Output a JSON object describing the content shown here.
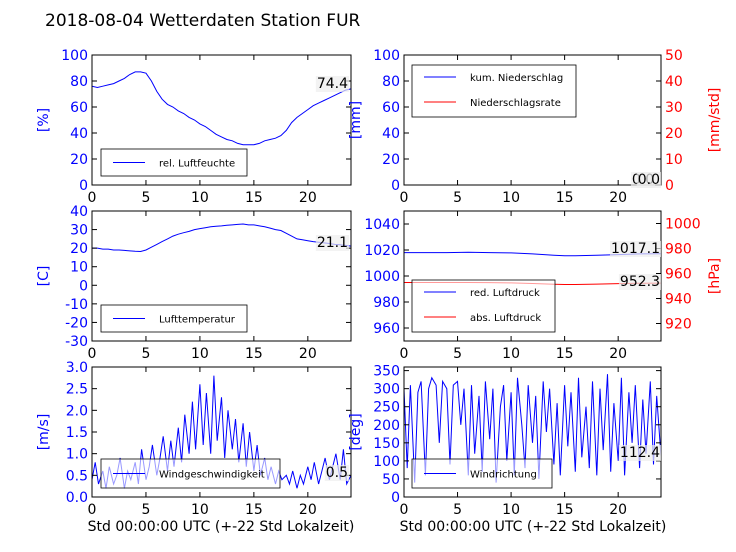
{
  "title": "2018-08-04 Wetterdaten Station FUR\u0001",
  "xlabel": "Std 00:00:00 UTC (+-22 Std Lokalzeit)",
  "colors": {
    "primary": "#0000ff",
    "secondary": "#ff0000",
    "legend_bg": "#ffffff"
  },
  "chart_data": [
    {
      "id": "humidity",
      "type": "line",
      "ylabel": "[%]",
      "ylim": [
        0,
        100
      ],
      "yticks": [
        0,
        20,
        40,
        60,
        80,
        100
      ],
      "xlim": [
        0,
        24
      ],
      "xticks": [
        0,
        5,
        10,
        15,
        20
      ],
      "legend": {
        "position": "lower-left",
        "entries": [
          "rel. Luftfeuchte"
        ]
      },
      "latest_label": "74.4",
      "series": [
        {
          "name": "rel. Luftfeuchte",
          "color": "#0000ff",
          "x": [
            0,
            0.5,
            1,
            1.5,
            2,
            2.5,
            3,
            3.5,
            4,
            4.5,
            5,
            5.5,
            6,
            6.5,
            7,
            7.5,
            8,
            8.5,
            9,
            9.5,
            10,
            10.5,
            11,
            11.5,
            12,
            12.5,
            13,
            13.5,
            14,
            14.5,
            15,
            15.5,
            16,
            16.5,
            17,
            17.5,
            18,
            18.5,
            19,
            19.5,
            20,
            20.5,
            21,
            21.5,
            22,
            22.5,
            23,
            23.5,
            24
          ],
          "y": [
            76,
            75,
            76,
            77,
            78,
            80,
            82,
            85,
            87,
            87,
            86,
            80,
            72,
            66,
            62,
            60,
            57,
            55,
            52,
            50,
            47,
            45,
            42,
            39,
            37,
            35,
            34,
            32,
            31,
            31,
            31,
            32,
            34,
            35,
            36,
            38,
            42,
            48,
            52,
            55,
            58,
            61,
            63,
            65,
            67,
            69,
            71,
            73,
            74
          ]
        }
      ]
    },
    {
      "id": "precipitation",
      "type": "line",
      "ylabel": "[mm]",
      "ylim": [
        0,
        100
      ],
      "yticks": [
        0,
        20,
        40,
        60,
        80,
        100
      ],
      "ylabel_right": "[mm/std]",
      "ylim_right": [
        0,
        50
      ],
      "yticks_right": [
        0,
        10,
        20,
        30,
        40,
        50
      ],
      "xlim": [
        0,
        24
      ],
      "xticks": [
        0,
        5,
        10,
        15,
        20
      ],
      "legend": {
        "position": "upper-left",
        "entries": [
          "kum. Niederschlag",
          "Niederschlagsrate"
        ]
      },
      "latest_label_left": "0.0",
      "latest_label_right": "0.0",
      "series": [
        {
          "name": "kum. Niederschlag",
          "color": "#0000ff",
          "axis": "left",
          "x": [
            0,
            24
          ],
          "y": [
            0,
            0
          ]
        },
        {
          "name": "Niederschlagsrate",
          "color": "#ff0000",
          "axis": "right",
          "x": [
            0,
            24
          ],
          "y": [
            0,
            0
          ]
        }
      ]
    },
    {
      "id": "temperature",
      "type": "line",
      "ylabel": "[C]",
      "ylim": [
        -30,
        40
      ],
      "yticks": [
        -30,
        -20,
        -10,
        0,
        10,
        20,
        30,
        40
      ],
      "xlim": [
        0,
        24
      ],
      "xticks": [
        0,
        5,
        10,
        15,
        20
      ],
      "legend": {
        "position": "lower-left",
        "entries": [
          "Lufttemperatur"
        ]
      },
      "latest_label": "21.1",
      "series": [
        {
          "name": "Lufttemperatur",
          "color": "#0000ff",
          "x": [
            0,
            0.5,
            1,
            1.5,
            2,
            2.5,
            3,
            3.5,
            4,
            4.5,
            5,
            5.5,
            6,
            6.5,
            7,
            7.5,
            8,
            8.5,
            9,
            9.5,
            10,
            10.5,
            11,
            11.5,
            12,
            12.5,
            13,
            13.5,
            14,
            14.5,
            15,
            15.5,
            16,
            16.5,
            17,
            17.5,
            18,
            18.5,
            19,
            19.5,
            20,
            20.5,
            21,
            21.5,
            22,
            22.5,
            23,
            23.5,
            24
          ],
          "y": [
            20,
            20,
            19.5,
            19.5,
            19,
            19,
            18.8,
            18.5,
            18.3,
            18.2,
            19,
            20.5,
            22,
            23.5,
            25,
            26.5,
            27.5,
            28.3,
            29,
            30,
            30.5,
            31,
            31.5,
            31.8,
            32,
            32.3,
            32.5,
            32.8,
            33,
            32.5,
            32.5,
            32,
            31.5,
            30.8,
            30,
            29.5,
            28,
            26.5,
            25,
            24.5,
            24,
            23.5,
            23.2,
            22.8,
            22.5,
            22,
            21.8,
            21.5,
            21.1
          ]
        }
      ]
    },
    {
      "id": "pressure",
      "type": "line",
      "ylabel_right": "[hPa]",
      "ylim": [
        950,
        1050
      ],
      "yticks": [
        960,
        980,
        1000,
        1020,
        1040
      ],
      "ylim_right": [
        906,
        1010
      ],
      "yticks_right": [
        920,
        940,
        960,
        980,
        1000
      ],
      "xlim": [
        0,
        24
      ],
      "xticks": [
        0,
        5,
        10,
        15,
        20
      ],
      "legend": {
        "position": "lower-left",
        "entries": [
          "red. Luftdruck",
          "abs. Luftdruck"
        ]
      },
      "latest_label_left": "1017.1",
      "latest_label_right": "952.3",
      "series": [
        {
          "name": "red. Luftdruck",
          "color": "#0000ff",
          "axis": "left",
          "x": [
            0,
            2,
            4,
            6,
            8,
            10,
            12,
            14,
            15,
            16,
            18,
            20,
            22,
            24
          ],
          "y": [
            1018,
            1018,
            1018,
            1018.2,
            1018,
            1017.8,
            1017,
            1016,
            1015.5,
            1015.5,
            1016,
            1016.5,
            1017,
            1017.1
          ]
        },
        {
          "name": "abs. Luftdruck",
          "color": "#ff0000",
          "axis": "right",
          "x": [
            0,
            2,
            4,
            6,
            8,
            10,
            12,
            14,
            15,
            16,
            18,
            20,
            22,
            24
          ],
          "y": [
            952.8,
            952.8,
            952.8,
            952.8,
            952.7,
            952.5,
            952,
            951.4,
            951.2,
            951.2,
            951.5,
            951.9,
            952.2,
            952.3
          ]
        }
      ]
    },
    {
      "id": "windspeed",
      "type": "line",
      "ylabel": "[m/s]",
      "ylim": [
        0,
        3
      ],
      "yticks": [
        0.0,
        0.5,
        1.0,
        1.5,
        2.0,
        2.5,
        3.0
      ],
      "xlim": [
        0,
        24
      ],
      "xticks": [
        0,
        5,
        10,
        15,
        20
      ],
      "legend": {
        "position": "lower-left",
        "entries": [
          "Windgeschwindigkeit"
        ]
      },
      "latest_label": "0.5",
      "series": [
        {
          "name": "Windgeschwindigkeit",
          "color": "#0000ff",
          "x": [
            0,
            0.3,
            0.6,
            1,
            1.3,
            1.6,
            2,
            2.3,
            2.6,
            3,
            3.3,
            3.6,
            4,
            4.3,
            4.6,
            5,
            5.3,
            5.6,
            6,
            6.3,
            6.6,
            7,
            7.3,
            7.6,
            8,
            8.3,
            8.6,
            9,
            9.3,
            9.6,
            10,
            10.3,
            10.6,
            11,
            11.3,
            11.6,
            12,
            12.3,
            12.6,
            13,
            13.3,
            13.6,
            14,
            14.3,
            14.6,
            15,
            15.3,
            15.6,
            16,
            16.3,
            16.6,
            17,
            17.3,
            17.6,
            18,
            18.3,
            18.6,
            19,
            19.3,
            19.6,
            20,
            20.3,
            20.6,
            21,
            21.3,
            21.6,
            22,
            22.3,
            22.6,
            23,
            23.3,
            23.6,
            24
          ],
          "y": [
            0.4,
            0.8,
            0.3,
            0.6,
            0.2,
            0.7,
            0.3,
            0.5,
            0.9,
            0.2,
            0.6,
            0.4,
            0.8,
            0.3,
            1.1,
            0.4,
            0.7,
            1.2,
            0.5,
            0.9,
            1.4,
            0.6,
            1.3,
            0.7,
            1.6,
            0.8,
            1.9,
            1.0,
            2.2,
            1.1,
            2.6,
            1.2,
            2.4,
            1.0,
            2.8,
            1.3,
            2.3,
            0.9,
            2.0,
            1.1,
            1.8,
            0.8,
            1.7,
            0.7,
            1.5,
            0.6,
            1.2,
            0.5,
            0.9,
            0.4,
            0.7,
            0.3,
            0.6,
            0.4,
            0.5,
            0.3,
            0.6,
            0.2,
            0.5,
            0.3,
            0.7,
            0.4,
            0.8,
            0.3,
            0.6,
            0.9,
            0.4,
            0.7,
            1.0,
            0.4,
            1.1,
            0.3,
            0.5
          ]
        }
      ]
    },
    {
      "id": "winddirection",
      "type": "line",
      "ylabel": "[deg]",
      "ylim": [
        0,
        360
      ],
      "yticks": [
        0,
        50,
        100,
        150,
        200,
        250,
        300,
        350
      ],
      "xlim": [
        0,
        24
      ],
      "xticks": [
        0,
        5,
        10,
        15,
        20
      ],
      "legend": {
        "position": "lower-left",
        "entries": [
          "Windrichtung"
        ]
      },
      "latest_label": "112.4",
      "series": [
        {
          "name": "Windrichtung",
          "color": "#0000ff",
          "x": [
            0,
            0.3,
            0.6,
            1,
            1.3,
            1.6,
            2,
            2.3,
            2.6,
            3,
            3.3,
            3.6,
            4,
            4.3,
            4.6,
            5,
            5.3,
            5.6,
            6,
            6.3,
            6.6,
            7,
            7.3,
            7.6,
            8,
            8.3,
            8.6,
            9,
            9.3,
            9.6,
            10,
            10.3,
            10.6,
            11,
            11.3,
            11.6,
            12,
            12.3,
            12.6,
            13,
            13.3,
            13.6,
            14,
            14.3,
            14.6,
            15,
            15.3,
            15.6,
            16,
            16.3,
            16.6,
            17,
            17.3,
            17.6,
            18,
            18.3,
            18.6,
            19,
            19.3,
            19.6,
            20,
            20.3,
            20.6,
            21,
            21.3,
            21.6,
            22,
            22.3,
            22.6,
            23,
            23.3,
            23.6,
            24
          ],
          "y": [
            300,
            80,
            310,
            40,
            290,
            320,
            60,
            300,
            330,
            310,
            150,
            320,
            300,
            90,
            310,
            320,
            200,
            300,
            60,
            310,
            120,
            280,
            70,
            320,
            160,
            300,
            40,
            250,
            310,
            100,
            290,
            60,
            330,
            200,
            80,
            310,
            150,
            280,
            50,
            320,
            180,
            300,
            90,
            260,
            60,
            310,
            140,
            290,
            70,
            330,
            110,
            250,
            80,
            320,
            60,
            300,
            130,
            340,
            70,
            260,
            100,
            330,
            60,
            290,
            150,
            310,
            80,
            270,
            120,
            320,
            90,
            280,
            112
          ]
        }
      ]
    }
  ]
}
